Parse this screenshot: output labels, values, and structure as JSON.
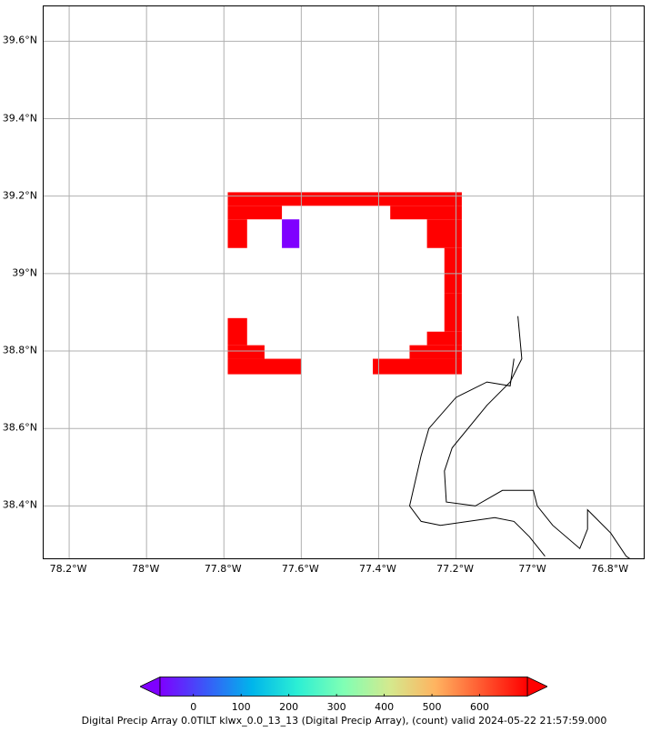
{
  "map": {
    "lat_ticks": [
      "39.6°N",
      "39.4°N",
      "39.2°N",
      "39°N",
      "38.8°N",
      "38.6°N",
      "38.4°N"
    ],
    "lat_values": [
      39.6,
      39.4,
      39.2,
      39.0,
      38.8,
      38.6,
      38.4
    ],
    "lon_ticks": [
      "78.2°W",
      "78°W",
      "77.8°W",
      "77.6°W",
      "77.4°W",
      "77.2°W",
      "77°W",
      "76.8°W"
    ],
    "lon_values": [
      -78.2,
      -78.0,
      -77.8,
      -77.6,
      -77.4,
      -77.2,
      -77.0,
      -76.8
    ],
    "extent": {
      "lon_min": -78.266,
      "lon_max": -76.71,
      "lat_min": 38.26,
      "lat_max": 39.69
    },
    "gridlines": true,
    "grid_color": "#b0b0b0",
    "cell_color_high": "#ff0000",
    "cell_color_low": "#7f00ff",
    "cells_high": [
      [
        -77.79,
        -77.185,
        39.175,
        39.21
      ],
      [
        -77.79,
        -77.65,
        39.14,
        39.175
      ],
      [
        -77.79,
        -77.74,
        39.066,
        39.14
      ],
      [
        -77.79,
        -77.79,
        39.14,
        39.175
      ],
      [
        -77.37,
        -77.185,
        39.14,
        39.175
      ],
      [
        -77.275,
        -77.185,
        39.066,
        39.14
      ],
      [
        -77.23,
        -77.185,
        38.95,
        39.066
      ],
      [
        -77.23,
        -77.185,
        38.85,
        38.95
      ],
      [
        -77.275,
        -77.185,
        38.815,
        38.85
      ],
      [
        -77.32,
        -77.185,
        38.78,
        38.815
      ],
      [
        -77.415,
        -77.185,
        38.74,
        38.78
      ],
      [
        -77.79,
        -77.74,
        38.815,
        38.885
      ],
      [
        -77.79,
        -77.695,
        38.78,
        38.815
      ],
      [
        -77.79,
        -77.6,
        38.74,
        38.78
      ]
    ],
    "cells_low": [
      [
        -77.65,
        -77.605,
        39.066,
        39.14
      ]
    ],
    "coastlines": [
      [
        [
          -77.04,
          38.89
        ],
        [
          -77.03,
          38.78
        ],
        [
          -77.06,
          38.72
        ],
        [
          -77.12,
          38.66
        ],
        [
          -77.21,
          38.55
        ],
        [
          -77.23,
          38.49
        ],
        [
          -77.225,
          38.41
        ],
        [
          -77.15,
          38.4
        ],
        [
          -77.08,
          38.44
        ],
        [
          -77.0,
          38.44
        ],
        [
          -76.99,
          38.4
        ],
        [
          -76.95,
          38.35
        ],
        [
          -76.88,
          38.29
        ],
        [
          -76.86,
          38.34
        ],
        [
          -76.86,
          38.39
        ],
        [
          -76.8,
          38.33
        ],
        [
          -76.76,
          38.27
        ],
        [
          -76.73,
          38.25
        ]
      ],
      [
        [
          -77.05,
          38.78
        ],
        [
          -77.06,
          38.71
        ],
        [
          -77.12,
          38.72
        ],
        [
          -77.2,
          38.68
        ],
        [
          -77.27,
          38.6
        ],
        [
          -77.29,
          38.53
        ],
        [
          -77.32,
          38.4
        ],
        [
          -77.29,
          38.36
        ],
        [
          -77.24,
          38.35
        ],
        [
          -77.1,
          38.37
        ],
        [
          -77.05,
          38.36
        ],
        [
          -77.01,
          38.32
        ],
        [
          -76.97,
          38.27
        ]
      ]
    ]
  },
  "colorbar": {
    "tick_labels": [
      "0",
      "100",
      "200",
      "300",
      "400",
      "500",
      "600"
    ],
    "tick_values": [
      0,
      100,
      200,
      300,
      400,
      500,
      600
    ],
    "range": [
      -70,
      700
    ],
    "colormap": "rainbow",
    "extend": "both"
  },
  "caption": "Digital Precip Array 0.0TILT klwx_0.0_13_13 (Digital Precip Array), (count) valid 2024-05-22 21:57:59.000"
}
